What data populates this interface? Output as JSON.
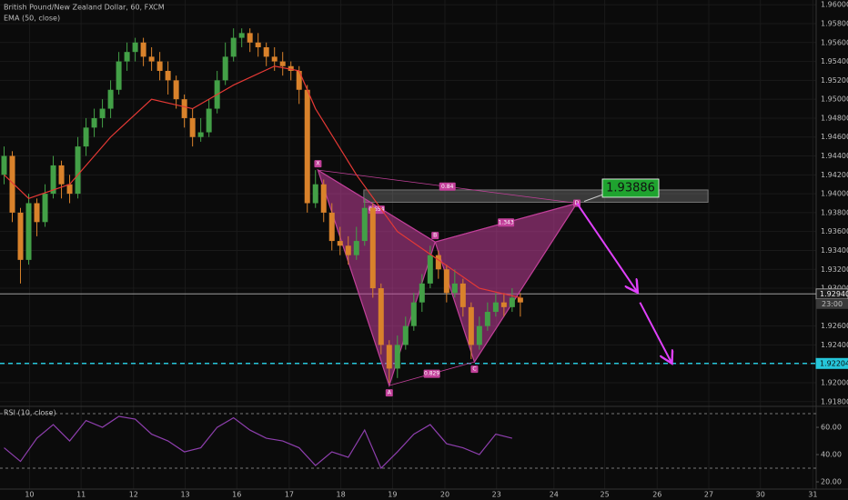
{
  "chart_data": {
    "type": "candlestick",
    "title": "British Pound/New Zealand Dollar, 60, FXCM",
    "xlim": [
      -0.5,
      99.1
    ],
    "ylim": [
      1.9175,
      1.9605
    ],
    "grid": true,
    "up_color": "#43a047",
    "down_color": "#d9822b",
    "xticks": [
      {
        "value": 3.1,
        "label": "10"
      },
      {
        "value": 9.4,
        "label": "11"
      },
      {
        "value": 15.8,
        "label": "12"
      },
      {
        "value": 22.1,
        "label": "13"
      },
      {
        "value": 28.4,
        "label": "16"
      },
      {
        "value": 34.8,
        "label": "17"
      },
      {
        "value": 41.1,
        "label": "18"
      },
      {
        "value": 47.4,
        "label": "19"
      },
      {
        "value": 53.8,
        "label": "20"
      },
      {
        "value": 60.1,
        "label": "23"
      },
      {
        "value": 67.1,
        "label": "24"
      },
      {
        "value": 73.3,
        "label": "25"
      },
      {
        "value": 79.7,
        "label": "26"
      },
      {
        "value": 86.0,
        "label": "27"
      },
      {
        "value": 92.3,
        "label": "30"
      },
      {
        "value": 98.7,
        "label": "31"
      }
    ],
    "yticks": [
      {
        "value": 1.96,
        "label": "1.96000"
      },
      {
        "value": 1.958,
        "label": "1.95800"
      },
      {
        "value": 1.956,
        "label": "1.95600"
      },
      {
        "value": 1.954,
        "label": "1.95400"
      },
      {
        "value": 1.952,
        "label": "1.95200"
      },
      {
        "value": 1.95,
        "label": "1.95000"
      },
      {
        "value": 1.948,
        "label": "1.94800"
      },
      {
        "value": 1.946,
        "label": "1.94600"
      },
      {
        "value": 1.944,
        "label": "1.94400"
      },
      {
        "value": 1.942,
        "label": "1.94200"
      },
      {
        "value": 1.94,
        "label": "1.94000"
      },
      {
        "value": 1.938,
        "label": "1.93800"
      },
      {
        "value": 1.936,
        "label": "1.93600"
      },
      {
        "value": 1.934,
        "label": "1.93400"
      },
      {
        "value": 1.932,
        "label": "1.93200"
      },
      {
        "value": 1.93,
        "label": "1.93000"
      },
      {
        "value": 1.926,
        "label": "1.92600"
      },
      {
        "value": 1.924,
        "label": "1.92400"
      },
      {
        "value": 1.922,
        "label": "1.92200"
      },
      {
        "value": 1.92,
        "label": "1.92000"
      },
      {
        "value": 1.918,
        "label": "1.91800"
      }
    ],
    "open": [
      1.942,
      1.944,
      1.938,
      1.933,
      1.939,
      1.937,
      1.94,
      1.943,
      1.941,
      1.94,
      1.945,
      1.947,
      1.948,
      1.949,
      1.951,
      1.954,
      1.955,
      1.956,
      1.9545,
      1.954,
      1.953,
      1.952,
      1.95,
      1.948,
      1.946,
      1.9465,
      1.949,
      1.952,
      1.9545,
      1.9565,
      1.957,
      1.956,
      1.9555,
      1.9545,
      1.954,
      1.9535,
      1.953,
      1.951,
      1.939,
      1.941,
      1.938,
      1.935,
      1.9345,
      1.9335,
      1.935,
      1.9385,
      1.93,
      1.924,
      1.9215,
      1.924,
      1.926,
      1.9285,
      1.9305,
      1.9335,
      1.932,
      1.9295,
      1.9305,
      1.928,
      1.924,
      1.926,
      1.9275,
      1.9285,
      1.928,
      1.929
    ],
    "high": [
      1.945,
      1.9445,
      1.9385,
      1.94,
      1.9395,
      1.941,
      1.944,
      1.9435,
      1.942,
      1.946,
      1.948,
      1.949,
      1.95,
      1.952,
      1.955,
      1.956,
      1.9565,
      1.9565,
      1.9555,
      1.955,
      1.954,
      1.9525,
      1.9505,
      1.949,
      1.948,
      1.95,
      1.953,
      1.956,
      1.9575,
      1.9575,
      1.9575,
      1.957,
      1.956,
      1.9555,
      1.955,
      1.954,
      1.9535,
      1.9515,
      1.9425,
      1.9415,
      1.939,
      1.9365,
      1.9355,
      1.9365,
      1.9395,
      1.939,
      1.9305,
      1.9245,
      1.925,
      1.927,
      1.9295,
      1.9315,
      1.9345,
      1.934,
      1.9325,
      1.932,
      1.931,
      1.9285,
      1.927,
      1.9285,
      1.9295,
      1.9295,
      1.93,
      1.9295
    ],
    "low": [
      1.941,
      1.937,
      1.9305,
      1.9325,
      1.9355,
      1.9365,
      1.9395,
      1.9395,
      1.939,
      1.9395,
      1.944,
      1.946,
      1.947,
      1.948,
      1.9505,
      1.953,
      1.954,
      1.9535,
      1.953,
      1.952,
      1.9505,
      1.949,
      1.947,
      1.945,
      1.9455,
      1.946,
      1.9485,
      1.9515,
      1.954,
      1.9555,
      1.955,
      1.9545,
      1.9535,
      1.953,
      1.9525,
      1.952,
      1.9495,
      1.938,
      1.9385,
      1.937,
      1.934,
      1.9335,
      1.9325,
      1.933,
      1.9345,
      1.929,
      1.923,
      1.92,
      1.9205,
      1.9235,
      1.9255,
      1.9275,
      1.93,
      1.931,
      1.9285,
      1.929,
      1.927,
      1.9225,
      1.9235,
      1.9255,
      1.927,
      1.927,
      1.9275,
      1.927
    ],
    "close": [
      1.944,
      1.938,
      1.933,
      1.939,
      1.937,
      1.94,
      1.943,
      1.941,
      1.94,
      1.945,
      1.947,
      1.948,
      1.949,
      1.951,
      1.954,
      1.955,
      1.956,
      1.9545,
      1.954,
      1.953,
      1.952,
      1.95,
      1.948,
      1.946,
      1.9465,
      1.949,
      1.952,
      1.9545,
      1.9565,
      1.957,
      1.956,
      1.9555,
      1.9545,
      1.954,
      1.9535,
      1.953,
      1.951,
      1.939,
      1.941,
      1.938,
      1.935,
      1.9345,
      1.9335,
      1.935,
      1.9385,
      1.93,
      1.924,
      1.9215,
      1.924,
      1.926,
      1.9285,
      1.9305,
      1.9335,
      1.932,
      1.9295,
      1.9305,
      1.928,
      1.924,
      1.926,
      1.9275,
      1.9285,
      1.928,
      1.929,
      1.9285
    ],
    "ema": {
      "name": "EMA (50, close)",
      "color": "#e53935",
      "x": [
        0,
        3,
        8,
        13,
        18,
        23,
        28,
        33,
        36,
        38,
        43,
        48,
        53,
        58,
        63
      ],
      "values": [
        1.942,
        1.9395,
        1.941,
        1.946,
        1.95,
        1.949,
        1.9515,
        1.9535,
        1.953,
        1.949,
        1.942,
        1.936,
        1.933,
        1.93,
        1.929
      ]
    },
    "pattern": {
      "color": "#c2409a",
      "labels": [
        "X",
        "A",
        "B",
        "C",
        "D"
      ],
      "x": [
        38.3,
        47,
        52.6,
        57.4,
        69.9
      ],
      "values": [
        1.9425,
        1.9197,
        1.9349,
        1.9222,
        1.939
      ],
      "ratios": [
        "0.84",
        "0.654",
        "1.343",
        "0.829"
      ]
    },
    "target_zone": {
      "x": [
        43.9,
        85.9
      ],
      "values": [
        1.9391,
        1.9404
      ]
    },
    "target_label": 1.93886,
    "projection": [
      {
        "x": [
          69.9,
          77.2
        ],
        "values": [
          1.939,
          1.9297
        ]
      },
      {
        "x": [
          77.6,
          81.4
        ],
        "values": [
          1.9285,
          1.9222
        ]
      }
    ],
    "price_lines": [
      {
        "value": 1.9294,
        "label": "1.92940",
        "sublabel": "23:00",
        "color": "#9e9e9e",
        "dashed": false
      },
      {
        "value": 1.92204,
        "label": "1.92204",
        "color": "#26c6da",
        "dashed": true
      }
    ],
    "rsi": {
      "name": "RSI (10, close)",
      "color": "#8e3fae",
      "ylim": [
        14.7,
        74.7
      ],
      "yticks": [
        {
          "value": 60,
          "label": "60.00"
        },
        {
          "value": 40,
          "label": "40.00"
        },
        {
          "value": 20,
          "label": "20.00"
        }
      ],
      "bands": [
        70,
        30
      ],
      "x": [
        0,
        2,
        4,
        6,
        8,
        10,
        12,
        14,
        16,
        18,
        20,
        22,
        24,
        26,
        28,
        30,
        32,
        34,
        36,
        38,
        40,
        42,
        44,
        46,
        48,
        50,
        52,
        54,
        56,
        58,
        60,
        62
      ],
      "values": [
        45,
        35,
        52,
        62,
        50,
        65,
        60,
        68,
        66,
        55,
        50,
        42,
        45,
        60,
        67,
        58,
        52,
        50,
        45,
        32,
        42,
        38,
        58,
        30,
        42,
        55,
        62,
        48,
        45,
        40,
        55,
        52
      ]
    }
  }
}
